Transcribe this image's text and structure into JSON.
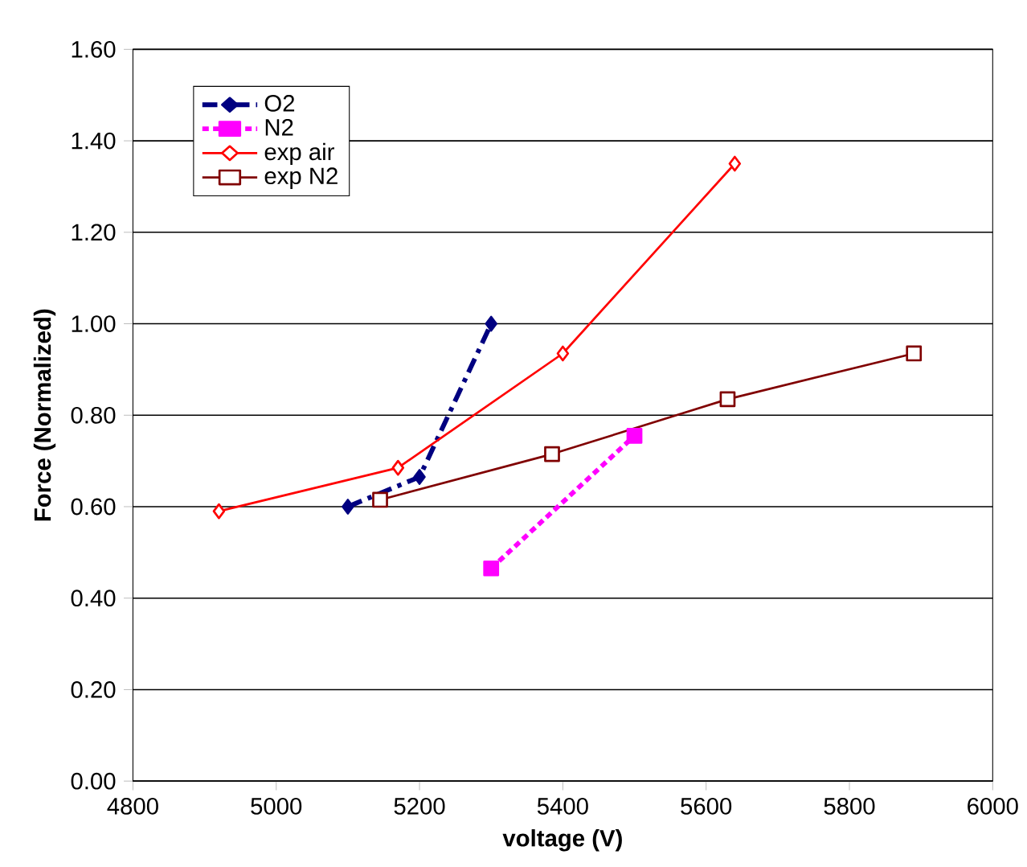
{
  "chart_data": {
    "type": "line",
    "xlabel": "voltage (V)",
    "ylabel": "Force (Normalized)",
    "xlim": [
      4800,
      6000
    ],
    "xticks": [
      4800,
      5000,
      5200,
      5400,
      5600,
      5800,
      6000
    ],
    "ylim": [
      0,
      1.6
    ],
    "yticks": [
      {
        "value": 0,
        "label": "0.00"
      },
      {
        "value": 0.2,
        "label": "0.20"
      },
      {
        "value": 0.4,
        "label": "0.40"
      },
      {
        "value": 0.6,
        "label": "0.60"
      },
      {
        "value": 0.8,
        "label": "0.80"
      },
      {
        "value": 1.0,
        "label": "1.00"
      },
      {
        "value": 1.2,
        "label": "1.20"
      },
      {
        "value": 1.4,
        "label": "1.40"
      },
      {
        "value": 1.6,
        "label": "1.60"
      }
    ],
    "grid": "y",
    "legend": "top left",
    "series": [
      {
        "name": "O2",
        "color": "#000080",
        "marker": "diamond",
        "line_style": "dashed",
        "x": [
          5100,
          5200,
          5300
        ],
        "values": [
          0.6,
          0.665,
          1.0
        ]
      },
      {
        "name": "N2",
        "color": "#ff00ff",
        "marker": "square",
        "line_style": "dotted",
        "x": [
          5300,
          5500
        ],
        "values": [
          0.465,
          0.755
        ]
      },
      {
        "name": "exp air",
        "color": "#ff0000",
        "marker": "diamond",
        "line_style": "solid",
        "x": [
          4920,
          5170,
          5400,
          5640
        ],
        "values": [
          0.59,
          0.685,
          0.935,
          1.35
        ]
      },
      {
        "name": "exp N2",
        "color": "#800000",
        "marker": "square",
        "line_style": "solid",
        "x": [
          5145,
          5385,
          5630,
          5890
        ],
        "values": [
          0.615,
          0.715,
          0.835,
          0.935
        ]
      }
    ]
  }
}
